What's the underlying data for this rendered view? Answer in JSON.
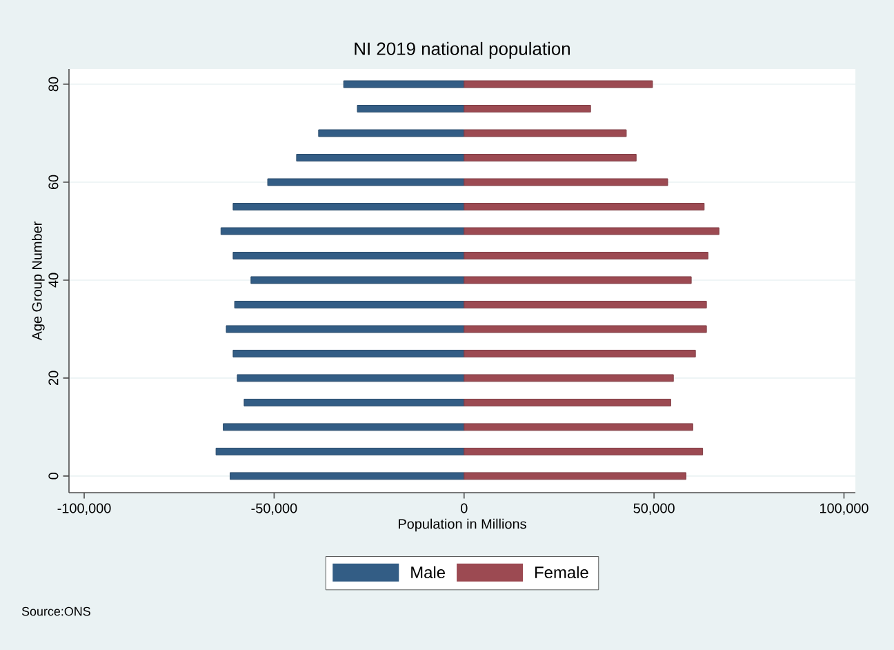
{
  "chart_data": {
    "type": "bar",
    "orientation": "horizontal",
    "stacked": true,
    "title": "NI 2019 national population",
    "xlabel": "Population in Millions",
    "ylabel": "Age Group Number",
    "x": [
      0,
      5,
      10,
      15,
      20,
      25,
      30,
      35,
      40,
      45,
      50,
      55,
      60,
      65,
      70,
      75,
      80
    ],
    "series": [
      {
        "name": "Male",
        "color": "#335d85",
        "values": [
          -61600,
          -65300,
          -63400,
          -57900,
          -59700,
          -60800,
          -62600,
          -60400,
          -56100,
          -60800,
          -64000,
          -60800,
          -51700,
          -44100,
          -38300,
          -28100,
          -31700
        ]
      },
      {
        "name": "Female",
        "color": "#9c4a52",
        "values": [
          58400,
          62800,
          60200,
          54400,
          55100,
          60900,
          63800,
          63800,
          59800,
          64200,
          67100,
          63200,
          53600,
          45300,
          42700,
          33300,
          49600
        ]
      }
    ],
    "xlim": [
      -104000,
      103000
    ],
    "xticks": [
      {
        "value": -100000,
        "label": "-100,000"
      },
      {
        "value": -50000,
        "label": "-50,000"
      },
      0,
      {
        "value": 50000,
        "label": "50,000"
      },
      {
        "value": 100000,
        "label": "100,000"
      }
    ],
    "ylim": [
      -3.4,
      83.1
    ],
    "yticks": [
      0,
      20,
      40,
      60,
      80
    ],
    "grid": "y",
    "legend": "bottom",
    "annotations": [
      "Source:ONS"
    ]
  }
}
